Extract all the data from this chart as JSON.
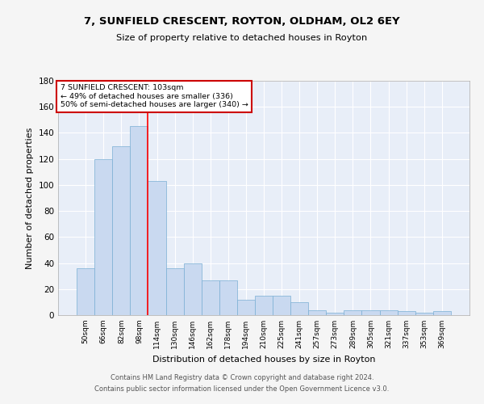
{
  "title1": "7, SUNFIELD CRESCENT, ROYTON, OLDHAM, OL2 6EY",
  "title2": "Size of property relative to detached houses in Royton",
  "xlabel": "Distribution of detached houses by size in Royton",
  "ylabel": "Number of detached properties",
  "bar_labels": [
    "50sqm",
    "66sqm",
    "82sqm",
    "98sqm",
    "114sqm",
    "130sqm",
    "146sqm",
    "162sqm",
    "178sqm",
    "194sqm",
    "210sqm",
    "225sqm",
    "241sqm",
    "257sqm",
    "273sqm",
    "289sqm",
    "305sqm",
    "321sqm",
    "337sqm",
    "353sqm",
    "369sqm"
  ],
  "bar_values": [
    36,
    120,
    130,
    145,
    103,
    36,
    40,
    27,
    27,
    12,
    15,
    15,
    10,
    4,
    2,
    4,
    4,
    4,
    3,
    2,
    3
  ],
  "bar_color": "#c9d9f0",
  "bar_edgecolor": "#7aafd4",
  "bg_color": "#e8eef8",
  "fig_bg_color": "#f5f5f5",
  "grid_color": "#ffffff",
  "annotation_box_text": "7 SUNFIELD CRESCENT: 103sqm\n← 49% of detached houses are smaller (336)\n50% of semi-detached houses are larger (340) →",
  "red_line_x": 3.5,
  "ylim": [
    0,
    180
  ],
  "yticks": [
    0,
    20,
    40,
    60,
    80,
    100,
    120,
    140,
    160,
    180
  ],
  "annotation_box_color": "#cc0000",
  "footer1": "Contains HM Land Registry data © Crown copyright and database right 2024.",
  "footer2": "Contains public sector information licensed under the Open Government Licence v3.0."
}
